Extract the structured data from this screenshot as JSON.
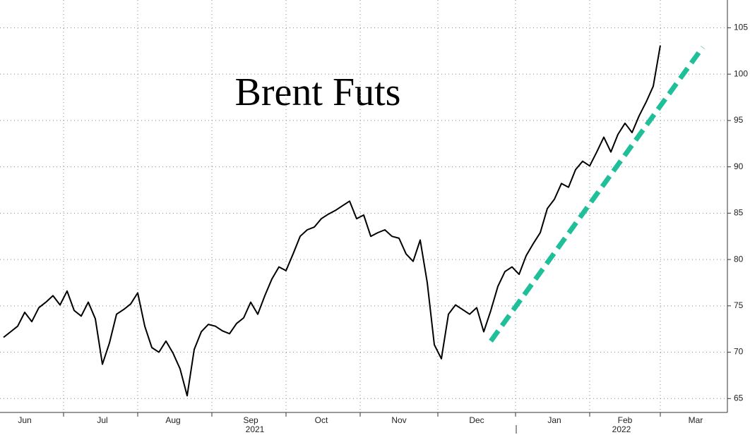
{
  "chart_data": {
    "type": "line",
    "title": "Brent Futs",
    "categories": [
      null,
      null,
      null,
      "Jun",
      null,
      null,
      null,
      null,
      null,
      null,
      null,
      null,
      null,
      null,
      "Jul",
      null,
      null,
      null,
      null,
      null,
      null,
      null,
      null,
      null,
      "Aug",
      null,
      null,
      null,
      null,
      null,
      null,
      null,
      null,
      null,
      null,
      "Sep",
      null,
      null,
      null,
      null,
      null,
      null,
      null,
      null,
      null,
      "Oct",
      null,
      null,
      null,
      null,
      null,
      null,
      null,
      null,
      null,
      null,
      "Nov",
      null,
      null,
      null,
      null,
      null,
      null,
      null,
      null,
      null,
      null,
      "Dec",
      null,
      null,
      null,
      null,
      null,
      null,
      null,
      null,
      null,
      null,
      "Jan",
      null,
      null,
      null,
      null,
      null,
      null,
      null,
      null,
      null,
      "Feb",
      null,
      null,
      null,
      null,
      null,
      null,
      null,
      null,
      null,
      "Mar",
      null,
      null,
      null,
      null
    ],
    "year_labels": [
      "2021",
      "2022"
    ],
    "series": [
      {
        "color": "#000000",
        "values": [
          71.6,
          72.2,
          72.8,
          74.3,
          73.3,
          74.8,
          75.4,
          76.1,
          75.1,
          76.6,
          74.5,
          73.9,
          75.4,
          73.6,
          68.7,
          71.0,
          74.1,
          74.6,
          75.2,
          76.4,
          72.8,
          70.5,
          70.0,
          71.2,
          69.9,
          68.2,
          65.3,
          70.3,
          72.2,
          73.0,
          72.8,
          72.3,
          72.0,
          73.1,
          73.7,
          75.4,
          74.1,
          76.1,
          77.9,
          79.2,
          78.8,
          80.6,
          82.5,
          83.2,
          83.5,
          84.4,
          84.9,
          85.3,
          85.8,
          86.3,
          84.4,
          84.8,
          82.5,
          82.9,
          83.2,
          82.5,
          82.3,
          80.6,
          79.8,
          82.1,
          77.5,
          70.8,
          69.3,
          74.1,
          75.1,
          74.6,
          74.1,
          74.8,
          72.2,
          74.5,
          77.1,
          78.7,
          79.2,
          78.4,
          80.4,
          81.7,
          82.9,
          85.5,
          86.5,
          88.2,
          87.8,
          89.7,
          90.6,
          90.1,
          91.6,
          93.2,
          91.6,
          93.5,
          94.7,
          93.7,
          95.5,
          97.0,
          98.7,
          103.1,
          null,
          null,
          null,
          null,
          null,
          null,
          null,
          null,
          null
        ]
      },
      {
        "color": "#1fbf9a",
        "style": "dashed",
        "values": [
          null,
          null,
          null,
          null,
          null,
          null,
          null,
          null,
          null,
          null,
          null,
          null,
          null,
          null,
          null,
          null,
          null,
          null,
          null,
          null,
          null,
          null,
          null,
          null,
          null,
          null,
          null,
          null,
          null,
          null,
          null,
          null,
          null,
          null,
          null,
          null,
          null,
          null,
          null,
          null,
          null,
          null,
          null,
          null,
          null,
          null,
          null,
          null,
          null,
          null,
          null,
          null,
          null,
          null,
          null,
          null,
          null,
          null,
          null,
          null,
          null,
          null,
          null,
          null,
          null,
          null,
          null,
          null,
          null,
          71.2,
          null,
          null,
          null,
          null,
          null,
          null,
          null,
          null,
          null,
          null,
          null,
          null,
          null,
          null,
          null,
          null,
          null,
          null,
          null,
          null,
          null,
          null,
          null,
          null,
          null,
          null,
          null,
          null,
          null,
          102.9,
          null,
          null,
          null
        ]
      }
    ],
    "ylim": [
      63.5,
      108
    ],
    "yticks": [
      65,
      70,
      75,
      80,
      85,
      90,
      95,
      100,
      105
    ],
    "grid": true
  }
}
